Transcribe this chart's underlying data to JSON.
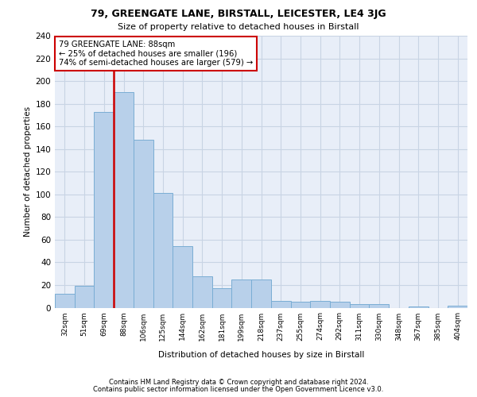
{
  "title1": "79, GREENGATE LANE, BIRSTALL, LEICESTER, LE4 3JG",
  "title2": "Size of property relative to detached houses in Birstall",
  "xlabel": "Distribution of detached houses by size in Birstall",
  "ylabel": "Number of detached properties",
  "categories": [
    "32sqm",
    "51sqm",
    "69sqm",
    "88sqm",
    "106sqm",
    "125sqm",
    "144sqm",
    "162sqm",
    "181sqm",
    "199sqm",
    "218sqm",
    "237sqm",
    "255sqm",
    "274sqm",
    "292sqm",
    "311sqm",
    "330sqm",
    "348sqm",
    "367sqm",
    "385sqm",
    "404sqm"
  ],
  "values": [
    12,
    19,
    173,
    190,
    148,
    101,
    54,
    28,
    17,
    25,
    25,
    6,
    5,
    6,
    5,
    3,
    3,
    0,
    1,
    0,
    2
  ],
  "bar_color": "#b8d0ea",
  "bar_edge_color": "#7aadd4",
  "property_bar_index": 3,
  "annotation_line1": "79 GREENGATE LANE: 88sqm",
  "annotation_line2": "← 25% of detached houses are smaller (196)",
  "annotation_line3": "74% of semi-detached houses are larger (579) →",
  "annotation_box_edge_color": "#cc0000",
  "vline_color": "#cc0000",
  "grid_color": "#c8d4e4",
  "background_color": "#e8eef8",
  "ylim": [
    0,
    240
  ],
  "yticks": [
    0,
    20,
    40,
    60,
    80,
    100,
    120,
    140,
    160,
    180,
    200,
    220,
    240
  ],
  "footnote1": "Contains HM Land Registry data © Crown copyright and database right 2024.",
  "footnote2": "Contains public sector information licensed under the Open Government Licence v3.0."
}
